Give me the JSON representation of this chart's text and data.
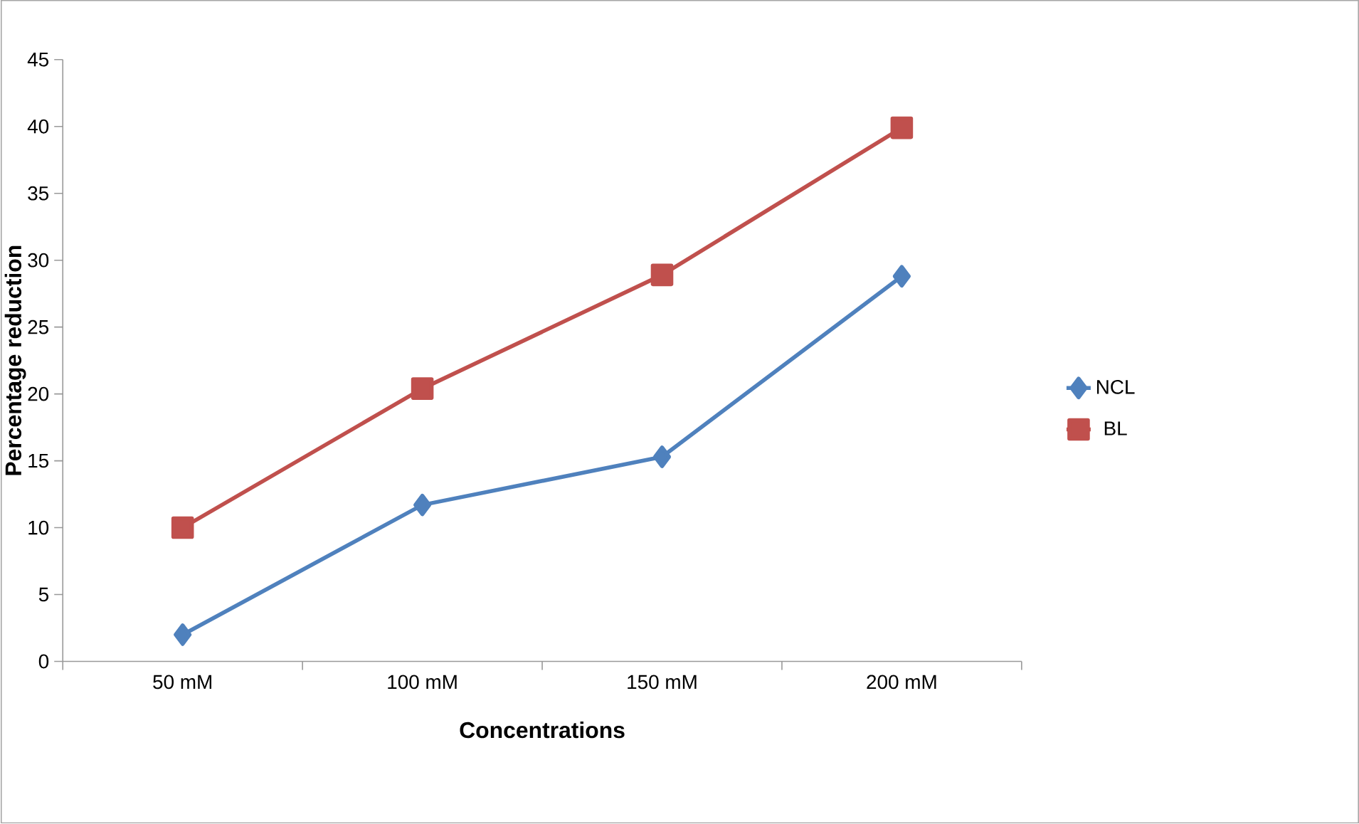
{
  "chart_data": {
    "type": "line",
    "xlabel": "Concentrations",
    "ylabel": "Percentage reduction",
    "categories": [
      "50 mM",
      "100 mM",
      "150 mM",
      "200 mM"
    ],
    "series": [
      {
        "name": "NCL",
        "color": "#4f81bd",
        "marker": "diamond",
        "values": [
          2.0,
          11.7,
          15.3,
          28.8
        ]
      },
      {
        "name": "BL",
        "color": "#c0504d",
        "marker": "square",
        "values": [
          10.0,
          20.4,
          28.9,
          39.9
        ]
      }
    ],
    "ylim": [
      0,
      45
    ],
    "yticks": [
      0,
      5,
      10,
      15,
      20,
      25,
      30,
      35,
      40,
      45
    ],
    "grid": false,
    "legend": "right"
  }
}
